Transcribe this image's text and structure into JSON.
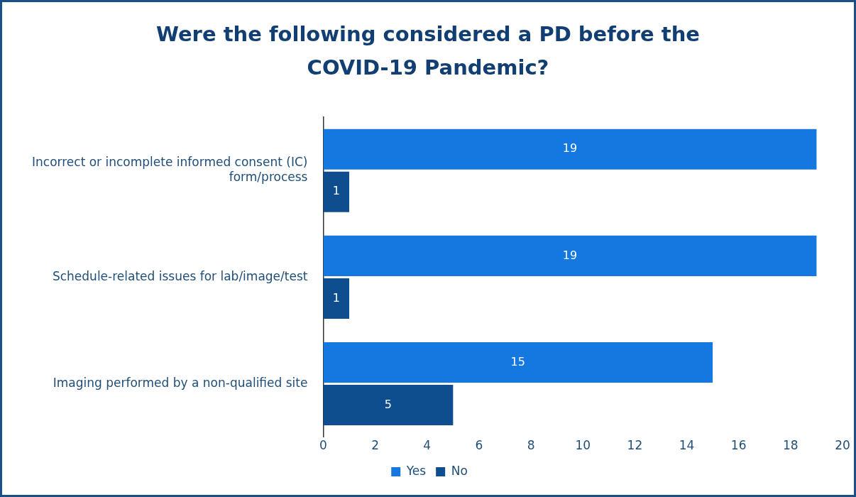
{
  "chart_data": {
    "type": "bar",
    "orientation": "horizontal",
    "title": "Were the following considered a PD before the COVID-19 Pandemic?",
    "categories": [
      "Incorrect or incomplete informed consent (IC) form/process",
      "Schedule-related issues for lab/image/test",
      "Imaging performed by a non-qualified site"
    ],
    "series": [
      {
        "name": "Yes",
        "color": "#1578e1",
        "values": [
          19,
          19,
          15
        ]
      },
      {
        "name": "No",
        "color": "#0e4d8e",
        "values": [
          1,
          1,
          5
        ]
      }
    ],
    "xlim": [
      0,
      20
    ],
    "xticks": [
      0,
      2,
      4,
      6,
      8,
      10,
      12,
      14,
      16,
      18,
      20
    ],
    "data_labels": true,
    "legend": "bottom",
    "grid": false
  }
}
